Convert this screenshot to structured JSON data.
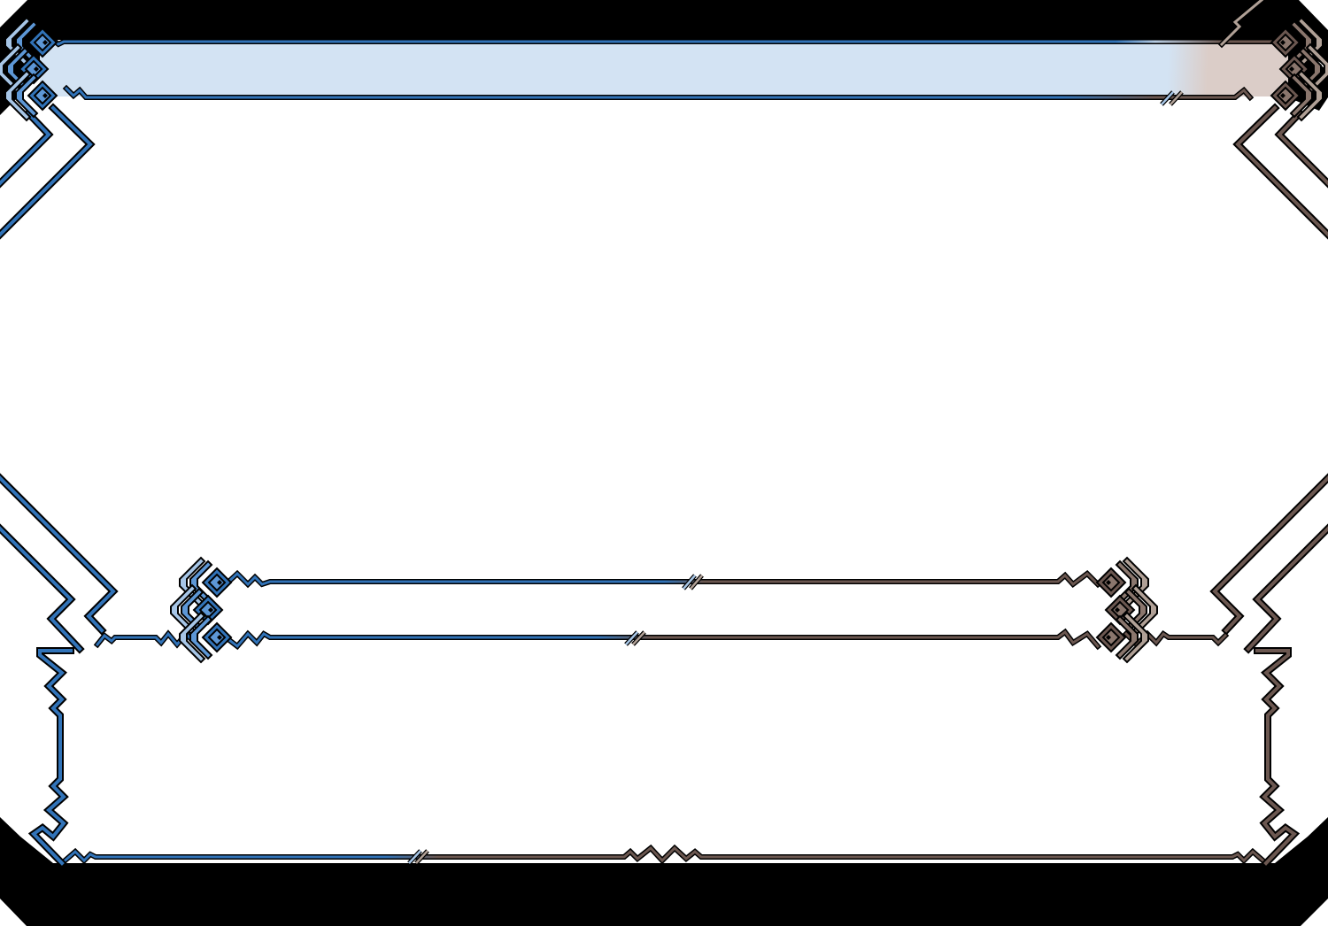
{
  "frame": {
    "colors": {
      "background": "#ffffff",
      "mask": "#000000",
      "blue_dark": "#3173b8",
      "blue_mid": "#5d97d6",
      "blue_light": "#a7c6e7",
      "brown_dark": "#6b5750",
      "brown_mid": "#8a766d",
      "brown_light": "#b0a096",
      "header_fill_left": "#d3e3f3",
      "header_fill_right": "#dbcdc8"
    },
    "regions": [
      "header-bar",
      "main-area",
      "name-box",
      "text-box"
    ]
  }
}
